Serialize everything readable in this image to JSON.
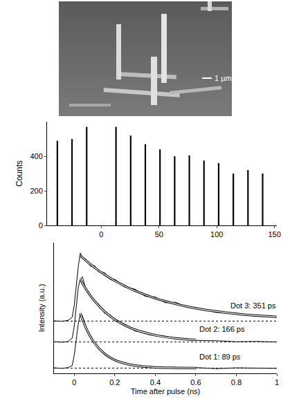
{
  "image": {
    "scale_bar": "1 µm"
  },
  "chart_data": [
    {
      "type": "bar",
      "y_label": "Counts",
      "x": [
        -38.1,
        -25.4,
        -12.7,
        12.7,
        25.4,
        38.1,
        50.8,
        63.5,
        76.2,
        88.9,
        101.6,
        114.3,
        127,
        139.7
      ],
      "values": [
        490,
        500,
        570,
        570,
        520,
        470,
        440,
        400,
        405,
        375,
        360,
        300,
        320,
        300
      ],
      "color": "#000000",
      "xlim": [
        -47,
        152
      ],
      "xticks": [
        0,
        50,
        100,
        150
      ],
      "ylim": [
        0,
        600
      ],
      "yticks": [
        0,
        200,
        400
      ],
      "grid": false
    },
    {
      "type": "line",
      "x_label": "Time after pulse (ns)",
      "y_label": "Intensity (a.u.)",
      "xlim": [
        -0.1,
        1.0
      ],
      "xticks": [
        0,
        0.2,
        0.4,
        0.6,
        0.8,
        1
      ],
      "ylim": [
        0,
        5
      ],
      "tick_labels": "x",
      "grid": false,
      "series": [
        {
          "name": "Dot 1: 89 ps",
          "color": "#000000",
          "baseline": 0.2,
          "x": [
            -0.1,
            -0.06,
            -0.03,
            -0.01,
            0,
            0.01,
            0.02,
            0.03,
            0.04,
            0.06,
            0.08,
            0.1,
            0.12,
            0.15,
            0.18,
            0.2,
            0.25,
            0.3,
            0.35,
            0.4,
            0.45,
            0.5,
            0.55,
            0.6,
            0.7,
            0.8,
            0.9,
            1.0
          ],
          "values": [
            0.21,
            0.19,
            0.22,
            0.3,
            0.7,
            1.3,
            1.9,
            2.3,
            2.2,
            1.75,
            1.35,
            1.2,
            0.92,
            0.78,
            0.56,
            0.53,
            0.36,
            0.32,
            0.24,
            0.25,
            0.2,
            0.23,
            0.19,
            0.22,
            0.18,
            0.21,
            0.2,
            0.19
          ],
          "fit": {
            "x": [
              0.03,
              0.06,
              0.1,
              0.15,
              0.2,
              0.25,
              0.3,
              0.4,
              0.5,
              0.6
            ],
            "values": [
              2.3,
              1.7,
              1.16,
              0.75,
              0.51,
              0.38,
              0.3,
              0.23,
              0.21,
              0.2
            ]
          }
        },
        {
          "name": "Dot 2: 166 ps",
          "color": "#000000",
          "baseline": 1.2,
          "x": [
            -0.1,
            -0.06,
            -0.03,
            -0.01,
            0,
            0.01,
            0.02,
            0.03,
            0.04,
            0.06,
            0.08,
            0.1,
            0.12,
            0.15,
            0.18,
            0.2,
            0.25,
            0.3,
            0.35,
            0.4,
            0.45,
            0.5,
            0.55,
            0.6,
            0.7,
            0.8,
            0.9,
            1.0
          ],
          "values": [
            1.21,
            1.19,
            1.22,
            1.35,
            1.8,
            2.6,
            3.3,
            3.6,
            3.7,
            3.15,
            3.0,
            2.72,
            2.65,
            2.3,
            2.22,
            2.02,
            1.88,
            1.62,
            1.58,
            1.43,
            1.41,
            1.32,
            1.33,
            1.26,
            1.25,
            1.21,
            1.22,
            1.2
          ],
          "fit": {
            "x": [
              0.03,
              0.06,
              0.1,
              0.15,
              0.2,
              0.25,
              0.3,
              0.4,
              0.5,
              0.6
            ],
            "values": [
              3.6,
              3.2,
              2.77,
              2.36,
              2.06,
              1.84,
              1.67,
              1.46,
              1.34,
              1.28
            ]
          }
        },
        {
          "name": "Dot 3: 351 ps",
          "color": "#000000",
          "baseline": 2.0,
          "x": [
            -0.1,
            -0.06,
            -0.03,
            -0.01,
            0,
            0.01,
            0.02,
            0.03,
            0.04,
            0.06,
            0.08,
            0.1,
            0.12,
            0.15,
            0.18,
            0.2,
            0.25,
            0.3,
            0.35,
            0.4,
            0.45,
            0.5,
            0.55,
            0.6,
            0.7,
            0.8,
            0.9,
            1.0
          ],
          "values": [
            2.01,
            1.99,
            2.03,
            2.15,
            2.6,
            3.4,
            4.1,
            4.6,
            4.45,
            4.35,
            4.1,
            4.12,
            3.88,
            3.85,
            3.58,
            3.6,
            3.3,
            3.22,
            2.95,
            2.92,
            2.7,
            2.72,
            2.55,
            2.52,
            2.33,
            2.3,
            2.18,
            2.17
          ],
          "fit": {
            "x": [
              0.03,
              0.06,
              0.1,
              0.15,
              0.2,
              0.25,
              0.3,
              0.4,
              0.5,
              0.6,
              0.7,
              0.8,
              0.9,
              1.0
            ],
            "values": [
              4.5,
              4.3,
              4.05,
              3.78,
              3.54,
              3.34,
              3.16,
              2.87,
              2.66,
              2.49,
              2.37,
              2.28,
              2.21,
              2.16
            ]
          }
        }
      ]
    }
  ]
}
